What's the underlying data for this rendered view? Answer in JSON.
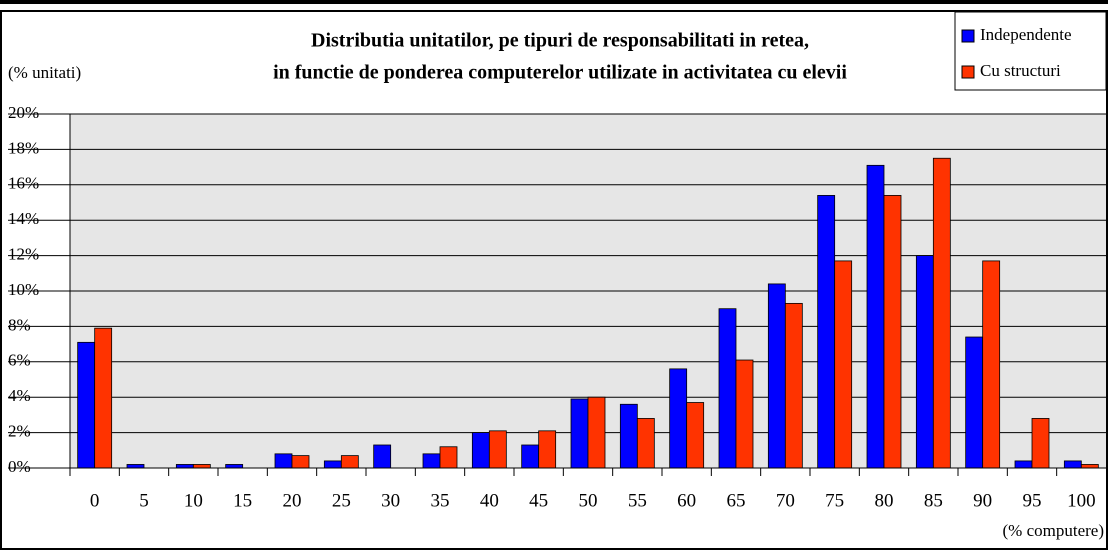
{
  "chart_data": {
    "type": "bar",
    "title": "Distributia unitatilor, pe tipuri de responsabilitati in retea,",
    "subtitle": "in functie de ponderea computerelor utilizate in activitatea cu elevii",
    "ylabel": "(% unitati)",
    "xlabel": "(% computere)",
    "categories": [
      "0",
      "5",
      "10",
      "15",
      "20",
      "25",
      "30",
      "35",
      "40",
      "45",
      "50",
      "55",
      "60",
      "65",
      "70",
      "75",
      "80",
      "85",
      "90",
      "95",
      "100"
    ],
    "series": [
      {
        "name": "Independente",
        "color": "#0000ff",
        "values": [
          7.1,
          0.2,
          0.2,
          0.2,
          0.8,
          0.4,
          1.3,
          0.8,
          2.0,
          1.3,
          3.9,
          3.6,
          5.6,
          9.0,
          10.4,
          15.4,
          17.1,
          12.0,
          7.4,
          0.4,
          0.4
        ]
      },
      {
        "name": "Cu structuri",
        "color": "#ff3300",
        "values": [
          7.9,
          0,
          0.2,
          0,
          0.7,
          0.7,
          0,
          1.2,
          2.1,
          2.1,
          4.0,
          2.8,
          3.7,
          6.1,
          9.3,
          11.7,
          15.4,
          17.5,
          11.7,
          2.8,
          0.2
        ]
      }
    ],
    "ylim": [
      0,
      20
    ],
    "yticks": [
      {
        "value": 0,
        "label": "0%"
      },
      {
        "value": 2,
        "label": "2%"
      },
      {
        "value": 4,
        "label": "4%"
      },
      {
        "value": 6,
        "label": "6%"
      },
      {
        "value": 8,
        "label": "8%"
      },
      {
        "value": 10,
        "label": "10%"
      },
      {
        "value": 12,
        "label": "12%"
      },
      {
        "value": 14,
        "label": "14%"
      },
      {
        "value": 16,
        "label": "16%"
      },
      {
        "value": 18,
        "label": "18%"
      },
      {
        "value": 20,
        "label": "20%"
      }
    ],
    "grid": true,
    "legend": "top-right"
  }
}
